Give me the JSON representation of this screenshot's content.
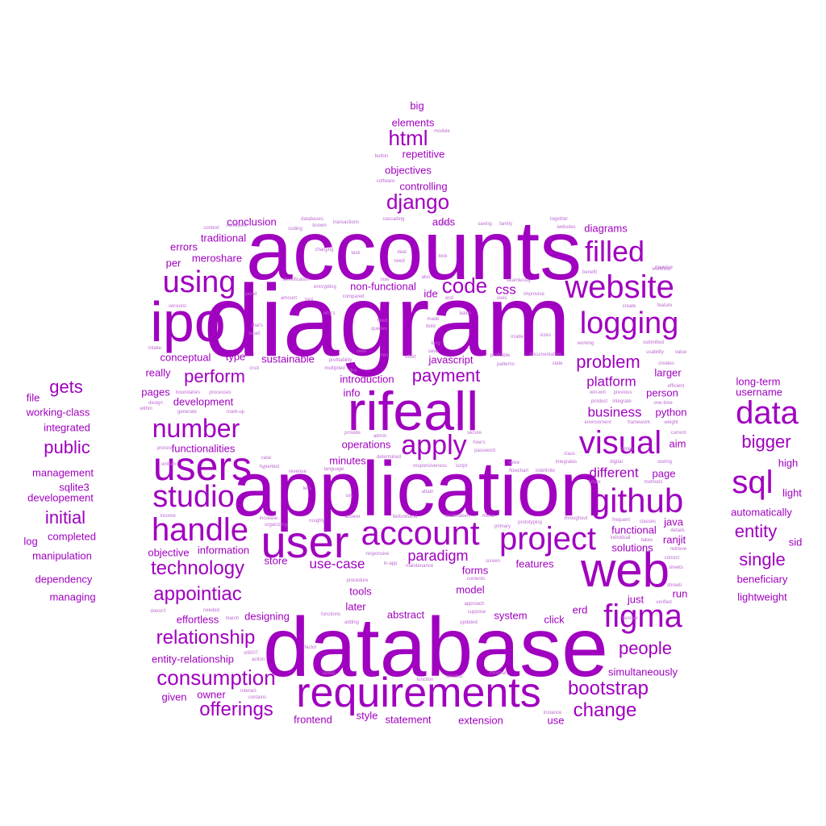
{
  "colors": {
    "background": "#ffffff",
    "primary": "#a000bf",
    "light": "#bd6ad2"
  },
  "words": {
    "accounts": "accounts",
    "diagram": "diagram",
    "database": "database",
    "application": "application",
    "rifeall": "rifeall",
    "ipo": "ipo",
    "user": "user",
    "users": "users",
    "web": "web",
    "requirements": "requirements",
    "website": "website",
    "github": "github",
    "account": "account",
    "project": "project",
    "figma": "figma",
    "data": "data",
    "sql": "sql",
    "visual": "visual",
    "handle": "handle",
    "studio": "studio",
    "filled": "filled",
    "logging": "logging",
    "using": "using",
    "apply": "apply",
    "number": "number",
    "consumption": "consumption",
    "django": "django",
    "html": "html",
    "code": "code",
    "bootstrap": "bootstrap",
    "change": "change",
    "relationship": "relationship",
    "offerings": "offerings",
    "technology": "technology",
    "appointiac": "appointiac",
    "perform": "perform",
    "payment": "payment",
    "problem": "problem",
    "people": "people",
    "entity": "entity",
    "single": "single",
    "bigger": "bigger",
    "initial": "initial",
    "public": "public",
    "gets": "gets",
    "paradigm": "paradigm",
    "use_case": "use-case",
    "css": "css",
    "platform": "platform",
    "business": "business",
    "different": "different",
    "functional": "functional",
    "solutions": "solutions",
    "simultaneously": "simultaneously",
    "person": "person",
    "python": "python",
    "larger": "larger",
    "page": "page",
    "aim": "aim",
    "ranjit": "ranjit",
    "java": "java",
    "just": "just",
    "run": "run",
    "erd": "erd",
    "click": "click",
    "system": "system",
    "model": "model",
    "forms": "forms",
    "features": "features",
    "store": "store",
    "information": "information",
    "objective": "objective",
    "tools": "tools",
    "later": "later",
    "abstract": "abstract",
    "designing": "designing",
    "effortless": "effortless",
    "entity_relationship": "entity-relationship",
    "given": "given",
    "owner": "owner",
    "frontend": "frontend",
    "style": "style",
    "statement": "statement",
    "extension": "extension",
    "use": "use",
    "operations": "operations",
    "minutes": "minutes",
    "info": "info",
    "introduction": "introduction",
    "javascript": "javascript",
    "ide": "ide",
    "sustainable": "sustainable",
    "non_functional": "non-functional",
    "type": "type",
    "conceptual": "conceptual",
    "really": "really",
    "pages": "pages",
    "development": "development",
    "functionalities": "functionalities",
    "errors": "errors",
    "per": "per",
    "meroshare": "meroshare",
    "traditional": "traditional",
    "conclusion": "conclusion",
    "adds": "adds",
    "diagrams": "diagrams",
    "controlling": "controlling",
    "objectives": "objectives",
    "repetitive": "repetitive",
    "elements": "elements",
    "big": "big",
    "long_term": "long-term",
    "username": "username",
    "automatically": "automatically",
    "high": "high",
    "light": "light",
    "sid": "sid",
    "beneficiary": "beneficiary",
    "lightweight": "lightweight",
    "file": "file",
    "working_class": "working-class",
    "integrated": "integrated",
    "management": "management",
    "sqlite3": "sqlite3",
    "developement": "developement",
    "log": "log",
    "completed": "completed",
    "manipulation": "manipulation",
    "dependency": "dependency",
    "managing": "managing",
    "s_databases": "databases",
    "s_transactions": "transactions",
    "s_cascading": "cascading",
    "s_saving": "saving",
    "s_family": "family",
    "s_together": "together",
    "s_websites": "websites",
    "s_context": "context",
    "s_inefficient": "inefficient",
    "s_coding": "coding",
    "s_known": "known",
    "s_write": "write",
    "s_module": "module",
    "s_button": "button",
    "s_software": "software",
    "s_charging": "charging",
    "s_task": "task",
    "s_deal": "deal",
    "s_look": "look",
    "s_need": "need",
    "s_identification": "identification",
    "s_now": "now",
    "s_also": "also",
    "s_seamlessly": "seamlessly",
    "s_benefit": "benefit",
    "s_massive": "massive",
    "s_amount": "amount",
    "s_tool": "tool",
    "s_encrypting": "encrypting",
    "s_compared": "compared",
    "s_end": "end",
    "s_uses": "uses",
    "s_improvise": "improvise",
    "s_create": "create",
    "s_feature": "feature",
    "s_versions": "versions",
    "s_spend": "spend",
    "s_whys": "why's",
    "s_batch": "batch",
    "s_thats": "that's",
    "s_fixed": "fixed",
    "s_queries": "queries",
    "s_made": "made",
    "s_bold": "bold",
    "s_small": "small",
    "s_long": "long",
    "s_inside": "inside",
    "s_sizes": "sizes",
    "s_working": "working",
    "s_submitted": "submitted",
    "s_intake": "intake",
    "s_view": "view",
    "s_min": "min",
    "s_save": "save",
    "s_effort": "effort",
    "s_profitable": "profitable",
    "s_documentation": "documentation",
    "s_usability": "usability",
    "s_value": "value",
    "s_crud": "crud",
    "s_profitability": "profitability",
    "s_link": "link",
    "s_multiplied": "multiplied",
    "s_patterns": "patterns",
    "s_state": "state",
    "s_creates": "creates",
    "s_efficient": "efficient",
    "s_design": "design",
    "s_boundaries": "boundaries",
    "s_processes": "processes",
    "s_previous": "previous",
    "s_one_time": "one-time",
    "s_within": "within",
    "s_generate": "generate",
    "s_mark_up": "mark-up",
    "s_product": "product",
    "s_integrate": "integrate",
    "s_win_win": "win-win",
    "s_environment": "environment",
    "s_framework": "framework",
    "s_weight": "weight",
    "s_provide": "provide",
    "s_admin": "admin",
    "s_secure": "secure",
    "s_current": "current",
    "s_process": "process",
    "s_hows": "how's",
    "s_password": "password",
    "s_case": "case",
    "s_determined": "determined",
    "s_class": "class",
    "s_digital": "digital",
    "s_storing": "storing",
    "s_written": "written",
    "s_hypertext": "hypertext",
    "s_revenue": "revenue",
    "s_language": "language",
    "s_responsiveness": "responsiveness",
    "s_script": "script",
    "s_solve": "solve",
    "s_integrates": "integrates",
    "s_flowchart": "flowchart",
    "s_indefinite": "indefinite",
    "s_future": "future",
    "s_methods": "methods",
    "s_lets": "let's",
    "s_say": "say",
    "s_attain": "attain",
    "s_undertaken": "undertaken",
    "s_micro": "micro",
    "s_throughout": "throughout",
    "s_frequent": "frequent",
    "s_classes": "classes",
    "s_income": "income",
    "s_increase": "increase",
    "s_organizing": "organizing",
    "s_roughly": "roughly",
    "s_answer": "answer",
    "s_beforehand": "beforehand",
    "s_primary": "primary",
    "s_prototyping": "prototyping",
    "s_individual": "individual",
    "s_takes": "takes",
    "s_details": "details",
    "s_retrieve": "retrieve",
    "s_responsive": "responsive",
    "s_in_app": "in-app",
    "s_maintenance": "maintenance",
    "s_screen": "screen",
    "s_correct": "correct",
    "s_sheets": "sheets",
    "s_procedure": "procedure",
    "s_contents": "contents",
    "s_shreeti": "shreeti",
    "s_verified": "verified",
    "s_doesnt": "doesn't",
    "s_needed": "needed",
    "s_approach": "approach",
    "s_suppose": "suppose",
    "s_functions": "functions",
    "s_march": "march",
    "s_adding": "adding",
    "s_updated": "updated",
    "s_member": "member",
    "s_st5007": "st5007",
    "s_action": "action",
    "s_factor": "factor",
    "s_saved": "saved",
    "s_created": "created",
    "s_minimal": "minimal",
    "s_function": "function",
    "s_interact": "interact",
    "s_contains": "contains",
    "s_instance": "instance",
    "s_tables": "tables",
    "s_workflow": "workflow"
  }
}
